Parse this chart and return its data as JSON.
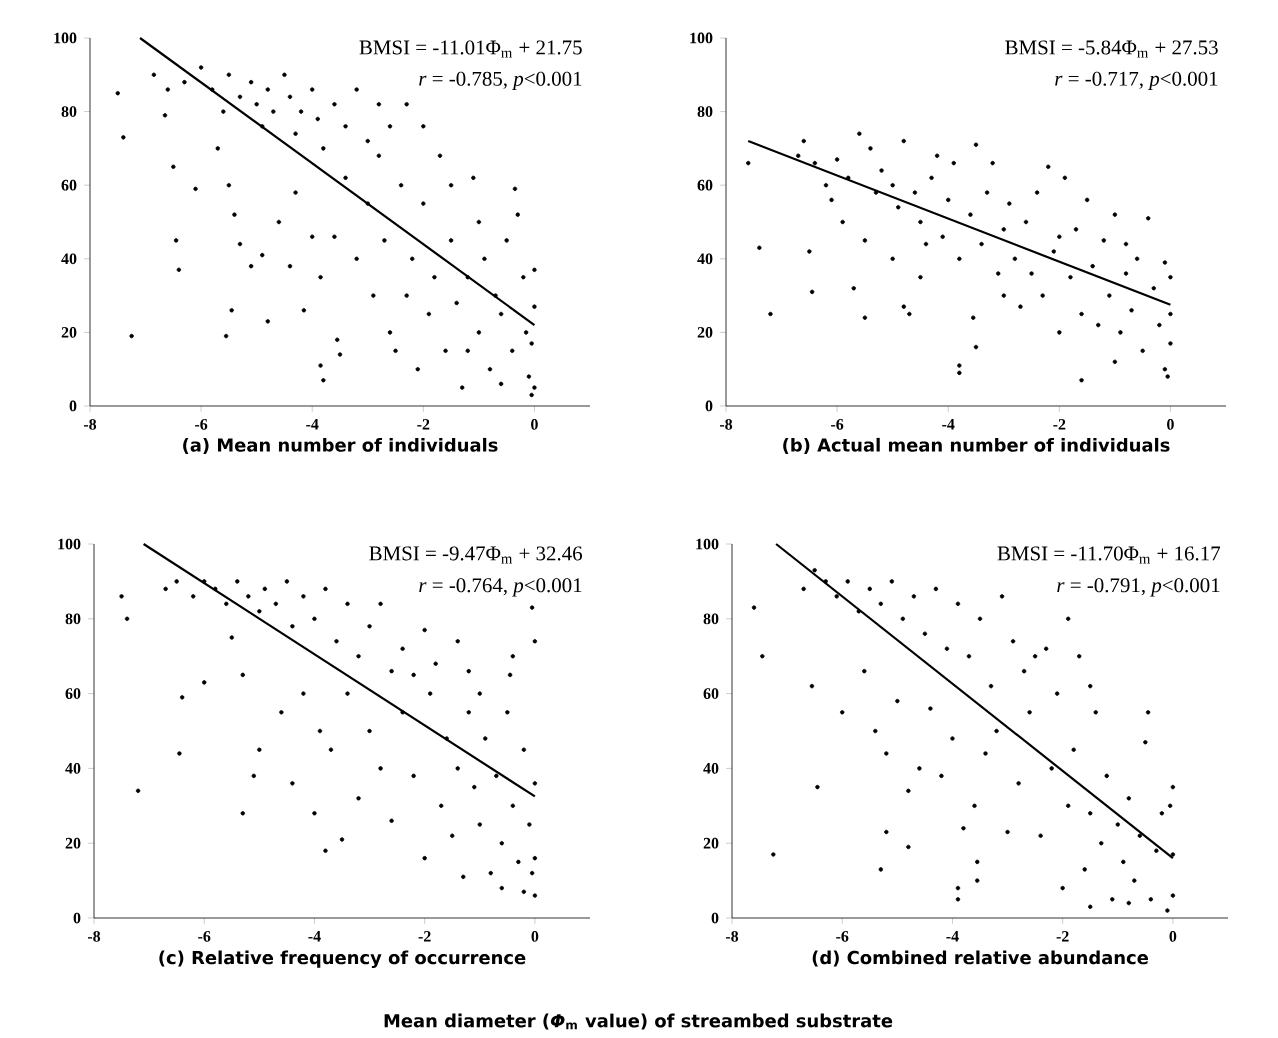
{
  "chart_data": [
    {
      "type": "scatter",
      "title": "(a)  Mean  number  of  individuals",
      "annotations": [
        "BMSI = -11.01Φ$_{m}$ + 21.75",
        "*r* = -0.785,  *p*<0.001"
      ],
      "xlim": [
        -8,
        1
      ],
      "ylim": [
        0,
        100
      ],
      "xticks": [
        -8,
        -6,
        -4,
        -2,
        0
      ],
      "yticks": [
        0,
        20,
        40,
        60,
        80,
        100
      ],
      "series": [
        {
          "marker": "circle",
          "color": "#000000",
          "x": [
            -7.5,
            -7.4,
            -7.25,
            -6.5,
            -6.45,
            -6.4,
            -6.1,
            -6.85,
            -6.65,
            -6.6,
            -6.3,
            -6.0,
            -5.8,
            -5.6,
            -5.5,
            -5.3,
            -5.1,
            -5.0,
            -4.9,
            -4.8,
            -4.7,
            -4.5,
            -4.4,
            -4.3,
            -4.2,
            -4.0,
            -3.9,
            -3.8,
            -3.6,
            -3.4,
            -3.2,
            -3.0,
            -2.8,
            -2.6,
            -2.3,
            -2.0,
            -5.7,
            -5.5,
            -5.4,
            -5.3,
            -5.45,
            -5.55,
            -5.1,
            -4.9,
            -4.8,
            -4.6,
            -4.4,
            -4.3,
            -4.15,
            -4.0,
            -3.85,
            -3.85,
            -3.8,
            -3.55,
            -3.5,
            -3.6,
            -3.4,
            -3.2,
            -3.0,
            -2.9,
            -2.7,
            -2.6,
            -2.5,
            -2.4,
            -2.3,
            -2.2,
            -2.1,
            -2.0,
            -1.9,
            -1.8,
            -1.7,
            -1.6,
            -1.5,
            -1.4,
            -1.3,
            -1.2,
            -1.1,
            -1.0,
            -0.9,
            -0.8,
            -0.7,
            -0.6,
            -0.5,
            -0.4,
            -0.35,
            -0.3,
            -0.2,
            -0.15,
            -0.1,
            -0.05,
            0,
            0,
            0,
            -0.05,
            -1.5,
            -2.8,
            -1.2,
            -0.6,
            -1.0
          ],
          "values": [
            85,
            73,
            19,
            65,
            45,
            37,
            59,
            90,
            79,
            86,
            88,
            92,
            86,
            80,
            90,
            84,
            88,
            82,
            76,
            86,
            80,
            90,
            84,
            74,
            80,
            86,
            78,
            70,
            82,
            76,
            86,
            72,
            82,
            76,
            82,
            76,
            70,
            60,
            52,
            44,
            26,
            19,
            38,
            41,
            23,
            50,
            38,
            58,
            26,
            46,
            35,
            11,
            7,
            18,
            14,
            46,
            62,
            40,
            55,
            30,
            45,
            20,
            15,
            60,
            30,
            40,
            10,
            55,
            25,
            35,
            68,
            15,
            45,
            28,
            5,
            35,
            62,
            20,
            40,
            10,
            30,
            25,
            45,
            15,
            59,
            52,
            35,
            20,
            8,
            3,
            5,
            27,
            37,
            17,
            60,
            68,
            15,
            6,
            50
          ]
        },
        {
          "type": "line",
          "marker": "none",
          "color": "#000000",
          "x": [
            -7.1,
            0
          ],
          "values": [
            100,
            22
          ]
        }
      ]
    },
    {
      "type": "scatter",
      "title": "(b)  Actual  mean  number  of  individuals",
      "annotations": [
        "BMSI = -5.84Φ$_{m}$ + 27.53",
        "*r* = -0.717,  *p*<0.001"
      ],
      "xlim": [
        -8,
        1
      ],
      "ylim": [
        0,
        100
      ],
      "xticks": [
        -8,
        -6,
        -4,
        -2,
        0
      ],
      "yticks": [
        0,
        20,
        40,
        60,
        80,
        100
      ],
      "series": [
        {
          "marker": "circle",
          "color": "#000000",
          "x": [
            -7.6,
            -7.4,
            -7.2,
            -6.5,
            -6.45,
            -5.5,
            -5.7,
            -4.8,
            -4.7,
            -3.8,
            -3.8,
            -3.5,
            -3.55,
            -1.6,
            -0.1,
            -0.05,
            -6.7,
            -6.6,
            -6.4,
            -6.2,
            -6.0,
            -5.8,
            -5.6,
            -5.4,
            -5.3,
            -5.2,
            -5.0,
            -4.9,
            -4.8,
            -4.6,
            -4.5,
            -4.3,
            -4.2,
            -4.1,
            -4.0,
            -3.9,
            -3.8,
            -3.6,
            -3.5,
            -3.4,
            -3.3,
            -3.2,
            -3.1,
            -3.0,
            -2.9,
            -2.8,
            -2.7,
            -2.6,
            -2.5,
            -2.4,
            -2.3,
            -2.2,
            -2.1,
            -2.0,
            -1.9,
            -1.8,
            -1.7,
            -1.6,
            -1.5,
            -1.4,
            -1.3,
            -1.2,
            -1.1,
            -1.0,
            -0.9,
            -0.8,
            -0.7,
            -0.6,
            -0.5,
            -0.4,
            -0.3,
            -0.2,
            -0.1,
            0,
            0,
            0,
            -5.9,
            -5.5,
            -5.0,
            -4.5,
            -4.4,
            -6.1,
            -3.0,
            -2.0,
            -1.0,
            -0.8
          ],
          "values": [
            66,
            43,
            25,
            42,
            31,
            24,
            32,
            27,
            25,
            11,
            9,
            16,
            24,
            7,
            10,
            8,
            68,
            72,
            66,
            60,
            67,
            62,
            74,
            70,
            58,
            64,
            60,
            54,
            72,
            58,
            50,
            62,
            68,
            46,
            56,
            66,
            40,
            52,
            71,
            44,
            58,
            66,
            36,
            48,
            55,
            40,
            27,
            50,
            36,
            58,
            30,
            65,
            42,
            20,
            62,
            35,
            48,
            25,
            56,
            38,
            22,
            45,
            30,
            52,
            20,
            36,
            26,
            40,
            15,
            51,
            32,
            22,
            39,
            35,
            25,
            17,
            50,
            45,
            40,
            35,
            44,
            56,
            30,
            46,
            12,
            44
          ]
        },
        {
          "type": "line",
          "marker": "none",
          "color": "#000000",
          "x": [
            -7.6,
            0
          ],
          "values": [
            72,
            27.5
          ]
        }
      ]
    },
    {
      "type": "scatter",
      "title": "(c)  Relative  frequency  of  occurrence",
      "annotations": [
        "BMSI = -9.47Φ$_{m}$ + 32.46",
        "*r* = -0.764,  *p*<0.001"
      ],
      "xlim": [
        -8,
        1
      ],
      "ylim": [
        0,
        100
      ],
      "xticks": [
        -8,
        -6,
        -4,
        -2,
        0
      ],
      "yticks": [
        0,
        20,
        40,
        60,
        80,
        100
      ],
      "series": [
        {
          "marker": "circle",
          "color": "#000000",
          "x": [
            -7.5,
            -7.4,
            -7.2,
            -6.4,
            -6.45,
            -6.0,
            -5.3,
            -5.1,
            -4.0,
            -3.8,
            -3.5,
            -0.05,
            0,
            -0.4,
            -0.45,
            0,
            -0.2,
            -6.7,
            -6.5,
            -6.2,
            -6.0,
            -5.8,
            -5.6,
            -5.4,
            -5.2,
            -5.0,
            -4.9,
            -4.7,
            -4.5,
            -4.4,
            -4.2,
            -4.0,
            -3.8,
            -3.6,
            -3.4,
            -3.2,
            -3.0,
            -2.8,
            -2.6,
            -2.4,
            -2.0,
            -1.8,
            -1.4,
            -1.2,
            -5.5,
            -5.3,
            -5.0,
            -4.6,
            -4.4,
            -4.2,
            -3.9,
            -3.7,
            -3.4,
            -3.2,
            -3.0,
            -2.8,
            -2.6,
            -2.4,
            -2.2,
            -2.0,
            -1.9,
            -1.7,
            -1.6,
            -1.5,
            -1.4,
            -1.3,
            -1.2,
            -1.1,
            -1.0,
            -0.9,
            -0.8,
            -0.7,
            -0.6,
            -0.5,
            -0.4,
            -0.3,
            -0.2,
            -0.1,
            0,
            0,
            -0.05,
            -0.6,
            -2.2,
            -1.0
          ],
          "values": [
            86,
            80,
            34,
            59,
            44,
            63,
            28,
            38,
            28,
            18,
            21,
            83,
            74,
            70,
            65,
            6,
            7,
            88,
            90,
            86,
            90,
            88,
            84,
            90,
            86,
            82,
            88,
            84,
            90,
            78,
            86,
            80,
            88,
            74,
            84,
            70,
            78,
            84,
            66,
            72,
            77,
            68,
            74,
            66,
            75,
            65,
            45,
            55,
            36,
            60,
            50,
            45,
            60,
            32,
            50,
            40,
            26,
            55,
            38,
            16,
            60,
            30,
            48,
            22,
            40,
            11,
            55,
            35,
            25,
            48,
            12,
            38,
            20,
            55,
            30,
            15,
            45,
            25,
            36,
            16,
            12,
            8,
            65,
            60
          ]
        },
        {
          "type": "line",
          "marker": "none",
          "color": "#000000",
          "x": [
            -7.1,
            0
          ],
          "values": [
            100,
            32.5
          ]
        }
      ]
    },
    {
      "type": "scatter",
      "title": "(d)  Combined  relative  abundance",
      "annotations": [
        "BMSI = -11.70Φ$_{m}$ + 16.17",
        "*r* = -0.791,  *p*<0.001",
        "Mean  diameter  (*Φ*$_{m}$  value)  of  streambed  substrate"
      ],
      "xlim": [
        -8,
        1
      ],
      "ylim": [
        0,
        100
      ],
      "xticks": [
        -8,
        -6,
        -4,
        -2,
        0
      ],
      "yticks": [
        0,
        20,
        40,
        60,
        80,
        100
      ],
      "series": [
        {
          "marker": "circle",
          "color": "#000000",
          "x": [
            -7.6,
            -7.45,
            -7.25,
            -6.55,
            -6.45,
            -6.0,
            -5.3,
            -5.2,
            -4.8,
            -3.9,
            -3.9,
            -3.55,
            -3.55,
            -6.7,
            -6.5,
            -6.3,
            -6.1,
            -5.9,
            -5.7,
            -5.5,
            -5.3,
            -5.1,
            -4.9,
            -4.7,
            -4.5,
            -4.3,
            -4.1,
            -3.9,
            -3.7,
            -3.5,
            -3.3,
            -3.1,
            -2.9,
            -2.7,
            -2.5,
            -2.3,
            -2.1,
            -1.9,
            -1.7,
            -1.5,
            -1.4,
            -5.6,
            -5.4,
            -5.2,
            -5.0,
            -4.8,
            -4.6,
            -4.4,
            -4.2,
            -4.0,
            -3.8,
            -3.6,
            -3.4,
            -3.2,
            -3.0,
            -2.8,
            -2.6,
            -2.4,
            -2.2,
            -2.0,
            -1.9,
            -1.8,
            -1.6,
            -1.5,
            -1.3,
            -1.2,
            -1.1,
            -1.0,
            -0.9,
            -0.8,
            -0.7,
            -0.6,
            -0.5,
            -0.45,
            -0.4,
            -0.3,
            -0.2,
            -0.1,
            0,
            0,
            0,
            -0.05,
            -1.5,
            -0.8
          ],
          "values": [
            83,
            70,
            17,
            62,
            35,
            55,
            13,
            23,
            19,
            8,
            5,
            10,
            15,
            88,
            93,
            90,
            86,
            90,
            82,
            88,
            84,
            90,
            80,
            86,
            76,
            88,
            72,
            84,
            70,
            80,
            62,
            86,
            74,
            66,
            70,
            72,
            60,
            80,
            70,
            62,
            55,
            66,
            50,
            44,
            58,
            34,
            40,
            56,
            38,
            48,
            24,
            30,
            44,
            50,
            23,
            36,
            55,
            22,
            40,
            8,
            30,
            45,
            13,
            28,
            20,
            38,
            5,
            25,
            15,
            32,
            10,
            22,
            47,
            55,
            5,
            18,
            28,
            2,
            35,
            17,
            6,
            30,
            3,
            4
          ]
        },
        {
          "type": "line",
          "marker": "none",
          "color": "#000000",
          "x": [
            -7.2,
            0
          ],
          "values": [
            100,
            16
          ]
        }
      ]
    }
  ]
}
